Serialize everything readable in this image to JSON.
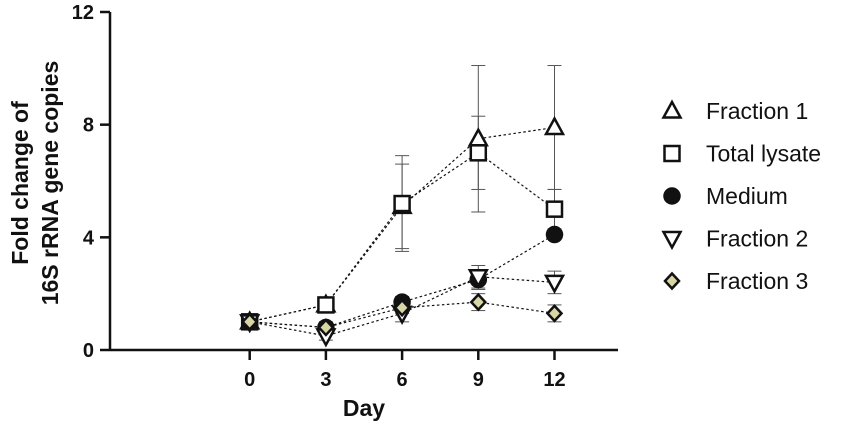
{
  "chart_data": {
    "type": "line",
    "xlabel": "Day",
    "ylabel_line1": "Fold change of",
    "ylabel_line2": "16S rRNA gene copies",
    "x": [
      0,
      3,
      6,
      9,
      12
    ],
    "xticks": [
      "0",
      "3",
      "6",
      "9",
      "12"
    ],
    "yticks": [
      "0",
      "4",
      "8",
      "12"
    ],
    "xlim": [
      -5.5,
      14.5
    ],
    "ylim": [
      0,
      12
    ],
    "legend_position": "right",
    "series": [
      {
        "name": "Fraction 1",
        "marker": "triangle-up",
        "fill": "#ffffff",
        "values": [
          1.0,
          1.6,
          5.1,
          7.5,
          7.9
        ],
        "errors": [
          0.05,
          0.25,
          1.5,
          2.6,
          2.2
        ]
      },
      {
        "name": "Total lysate",
        "marker": "square",
        "fill": "#ffffff",
        "values": [
          1.0,
          1.6,
          5.2,
          7.0,
          5.0
        ],
        "errors": [
          0.05,
          0.25,
          1.7,
          1.3,
          0.7
        ]
      },
      {
        "name": "Medium",
        "marker": "circle",
        "fill": "#111111",
        "values": [
          1.0,
          0.8,
          1.7,
          2.5,
          4.1
        ],
        "errors": [
          0.05,
          0.2,
          0.2,
          0.35,
          0.15
        ]
      },
      {
        "name": "Fraction 2",
        "marker": "triangle-down",
        "fill": "#ffffff",
        "values": [
          1.0,
          0.5,
          1.3,
          2.6,
          2.4
        ],
        "errors": [
          0.05,
          0.15,
          0.3,
          0.4,
          0.4
        ]
      },
      {
        "name": "Fraction 3",
        "marker": "diamond",
        "fill": "#d8d5a6",
        "values": [
          1.0,
          0.8,
          1.5,
          1.7,
          1.3
        ],
        "errors": [
          0.05,
          0.15,
          0.2,
          0.3,
          0.3
        ]
      }
    ]
  }
}
